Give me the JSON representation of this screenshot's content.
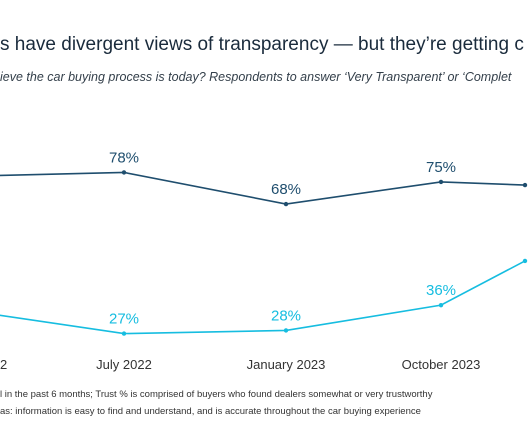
{
  "header": {
    "title": "s have divergent views of transparency — but they’re getting c",
    "subtitle": "ieve the car buying process is today? Respondents to answer ‘Very Transparent’ or ‘Complet"
  },
  "chart_data": {
    "type": "line",
    "categories": [
      "2",
      "July 2022",
      "January 2023",
      "October 2023",
      ""
    ],
    "series": [
      {
        "color": "#1f4e6e",
        "values": [
          77,
          78,
          68,
          75,
          74
        ],
        "labels": [
          "",
          "78%",
          "68%",
          "75%",
          ""
        ]
      },
      {
        "color": "#16bde0",
        "values": [
          33,
          27,
          28,
          36,
          50
        ],
        "labels": [
          "",
          "27%",
          "28%",
          "36%",
          ""
        ]
      }
    ],
    "ylim": [
      0,
      100
    ],
    "grid": false,
    "legend": "none"
  },
  "footnotes": {
    "line1": "l in the past 6 months; Trust % is comprised of buyers who found dealers somewhat or very trustworthy",
    "line2": "as: information is easy to find and understand, and is accurate throughout the car buying experience"
  }
}
